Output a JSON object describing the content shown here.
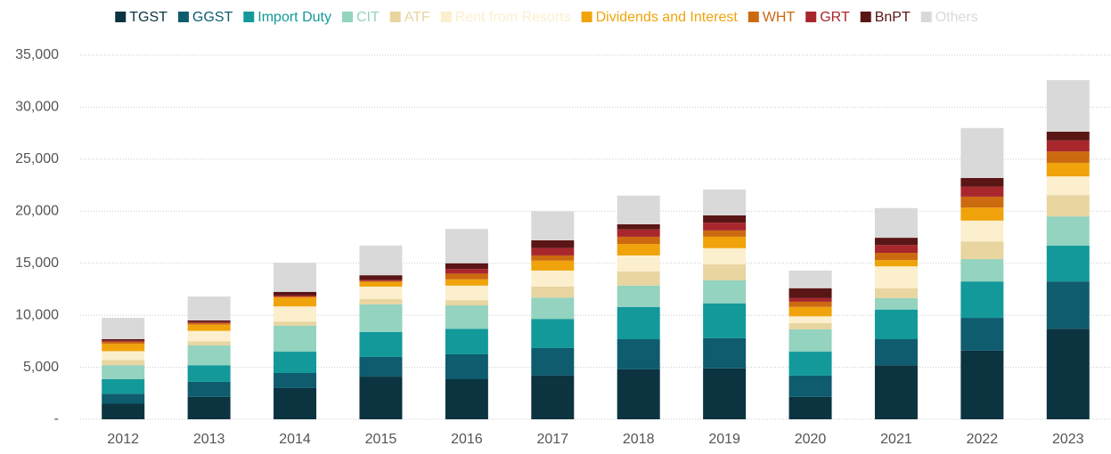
{
  "chart_data": {
    "type": "stacked_bar",
    "categories": [
      "2012",
      "2013",
      "2014",
      "2015",
      "2016",
      "2017",
      "2018",
      "2019",
      "2020",
      "2021",
      "2022",
      "2023"
    ],
    "series": [
      {
        "name": "TGST",
        "color": "#0b3340",
        "values": [
          1500,
          2150,
          3000,
          4100,
          3850,
          4200,
          4800,
          4900,
          2150,
          5200,
          6600,
          8700
        ]
      },
      {
        "name": "GGST",
        "color": "#0e5c6e",
        "values": [
          950,
          1450,
          1450,
          1900,
          2400,
          2650,
          2900,
          2900,
          2050,
          2500,
          3150,
          4550
        ]
      },
      {
        "name": "Import Duty",
        "color": "#13999a",
        "values": [
          1400,
          1600,
          2050,
          2400,
          2450,
          2800,
          3100,
          3350,
          2300,
          2850,
          3500,
          3450
        ]
      },
      {
        "name": "CIT",
        "color": "#93d3bf",
        "values": [
          1350,
          1900,
          2500,
          2650,
          2250,
          2050,
          2050,
          2200,
          2150,
          1100,
          2150,
          2800
        ]
      },
      {
        "name": "ATF",
        "color": "#e8d5a0",
        "values": [
          500,
          400,
          400,
          500,
          500,
          1050,
          1350,
          1550,
          600,
          950,
          1700,
          2050
        ]
      },
      {
        "name": "Rent from Resorts",
        "color": "#fbefcd",
        "values": [
          850,
          1000,
          1450,
          1200,
          1400,
          1550,
          1550,
          1550,
          650,
          2100,
          2000,
          1800
        ]
      },
      {
        "name": "Dividends and Interest",
        "color": "#f0a30a",
        "values": [
          700,
          600,
          850,
          450,
          600,
          950,
          1100,
          1100,
          900,
          600,
          1250,
          1300
        ]
      },
      {
        "name": "WHT",
        "color": "#cc6a10",
        "values": [
          200,
          150,
          100,
          100,
          550,
          500,
          700,
          600,
          500,
          700,
          1050,
          1100
        ]
      },
      {
        "name": "GRT",
        "color": "#a8272d",
        "values": [
          100,
          100,
          100,
          100,
          450,
          700,
          700,
          750,
          350,
          750,
          950,
          1050
        ]
      },
      {
        "name": "BnPT",
        "color": "#5a1515",
        "values": [
          150,
          150,
          350,
          450,
          550,
          750,
          500,
          700,
          950,
          700,
          850,
          850
        ]
      },
      {
        "name": "Others",
        "color": "#d9d9d9",
        "values": [
          2050,
          2300,
          2800,
          2850,
          3300,
          2800,
          2750,
          2500,
          1700,
          2850,
          4800,
          4950
        ]
      }
    ],
    "ylim": [
      0,
      35000
    ],
    "yticks": [
      {
        "value": 0,
        "label": "-"
      },
      {
        "value": 5000,
        "label": "5,000"
      },
      {
        "value": 10000,
        "label": "10,000"
      },
      {
        "value": 15000,
        "label": "15,000"
      },
      {
        "value": 20000,
        "label": "20,000"
      },
      {
        "value": 25000,
        "label": "25,000"
      },
      {
        "value": 30000,
        "label": "30,000"
      },
      {
        "value": 35000,
        "label": "35,000"
      }
    ],
    "grid": true
  }
}
